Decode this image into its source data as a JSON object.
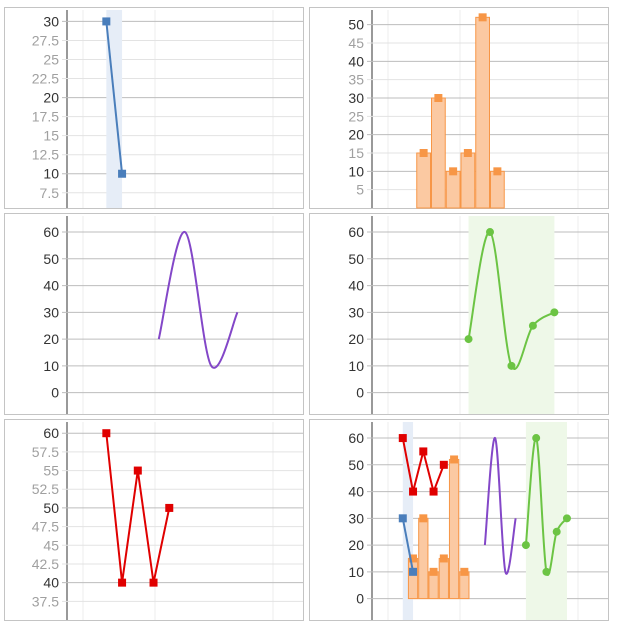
{
  "chart_data": [
    {
      "id": "p1",
      "type": "line",
      "x": [
        1,
        2
      ],
      "series": [
        {
          "values": [
            30,
            10
          ],
          "color": "#4a7ebb",
          "marker": "square",
          "curve": "linear",
          "band": true
        }
      ],
      "ylim": [
        5.5,
        31.5
      ],
      "xlim": [
        -1.5,
        13.5
      ],
      "yticks": [
        "7.5",
        "10",
        "12.5",
        "15",
        "17.5",
        "20",
        "22.5",
        "25",
        "27.5",
        "30"
      ],
      "yticks_major": [
        "10",
        "20",
        "30"
      ],
      "grid": true
    },
    {
      "id": "p2",
      "type": "bar",
      "x": [
        1,
        2,
        3,
        4,
        5,
        6
      ],
      "series": [
        {
          "values": [
            15,
            30,
            10,
            15,
            52,
            10
          ],
          "color": "#f79646",
          "marker": "square"
        }
      ],
      "ylim": [
        0,
        54
      ],
      "xlim": [
        -2.5,
        13.5
      ],
      "yticks": [
        "5",
        "10",
        "15",
        "20",
        "25",
        "30",
        "35",
        "40",
        "45",
        "50"
      ],
      "yticks_major": [
        "10",
        "20",
        "30",
        "40",
        "50"
      ],
      "grid": true
    },
    {
      "id": "p3",
      "type": "line",
      "x": [
        1,
        2,
        3,
        4
      ],
      "series": [
        {
          "values": [
            20,
            60,
            10,
            30
          ],
          "color": "#8347c8",
          "marker": "none",
          "curve": "smooth"
        }
      ],
      "ylim": [
        -8,
        66
      ],
      "xlim": [
        -2.5,
        6.5
      ],
      "yticks": [
        "0",
        "10",
        "20",
        "30",
        "40",
        "50",
        "60"
      ],
      "yticks_major": [
        "0",
        "10",
        "20",
        "30",
        "40",
        "50",
        "60"
      ],
      "grid": true
    },
    {
      "id": "p4",
      "type": "line",
      "x": [
        1,
        2,
        3,
        4,
        5
      ],
      "series": [
        {
          "values": [
            20,
            60,
            10,
            25,
            30
          ],
          "color": "#6cc444",
          "marker": "circle",
          "curve": "smooth",
          "band": true
        }
      ],
      "ylim": [
        -8,
        66
      ],
      "xlim": [
        -3.5,
        7.5
      ],
      "yticks": [
        "0",
        "10",
        "20",
        "30",
        "40",
        "50",
        "60"
      ],
      "yticks_major": [
        "0",
        "10",
        "20",
        "30",
        "40",
        "50",
        "60"
      ],
      "grid": true
    },
    {
      "id": "p5",
      "type": "line",
      "x": [
        1,
        2,
        3,
        4,
        5
      ],
      "series": [
        {
          "values": [
            60,
            40,
            55,
            40,
            50
          ],
          "color": "#e00000",
          "marker": "square",
          "curve": "linear"
        }
      ],
      "ylim": [
        35,
        61.5
      ],
      "xlim": [
        -1.5,
        13.5
      ],
      "yticks": [
        "37.5",
        "40",
        "42.5",
        "45",
        "47.5",
        "50",
        "52.5",
        "55",
        "57.5",
        "60"
      ],
      "yticks_major": [
        "40",
        "50",
        "60"
      ],
      "grid": true
    },
    {
      "id": "p6",
      "type": "combo",
      "series": [
        {
          "type": "line",
          "x": [
            1,
            2
          ],
          "values": [
            30,
            10
          ],
          "color": "#4a7ebb",
          "marker": "square",
          "curve": "linear",
          "band": true
        },
        {
          "type": "bar",
          "x": [
            2,
            3,
            4,
            5,
            6,
            7
          ],
          "values": [
            15,
            30,
            10,
            15,
            52,
            10
          ],
          "color": "#f79646",
          "marker": "square"
        },
        {
          "type": "line",
          "x": [
            1,
            2,
            3,
            4,
            5
          ],
          "values": [
            60,
            40,
            55,
            40,
            50
          ],
          "color": "#e00000",
          "marker": "square",
          "curve": "linear"
        },
        {
          "type": "line",
          "x": [
            9,
            10,
            11,
            12
          ],
          "values": [
            20,
            60,
            10,
            30
          ],
          "color": "#8347c8",
          "marker": "none",
          "curve": "smooth"
        },
        {
          "type": "line",
          "x": [
            13,
            14,
            15,
            16,
            17
          ],
          "values": [
            20,
            60,
            10,
            25,
            30
          ],
          "color": "#6cc444",
          "marker": "circle",
          "curve": "smooth",
          "band": true
        }
      ],
      "ylim": [
        -8,
        66
      ],
      "xlim": [
        -2,
        21
      ],
      "yticks": [
        "0",
        "10",
        "20",
        "30",
        "40",
        "50",
        "60"
      ],
      "yticks_major": [
        "0",
        "10",
        "20",
        "30",
        "40",
        "50",
        "60"
      ],
      "grid": true
    }
  ]
}
